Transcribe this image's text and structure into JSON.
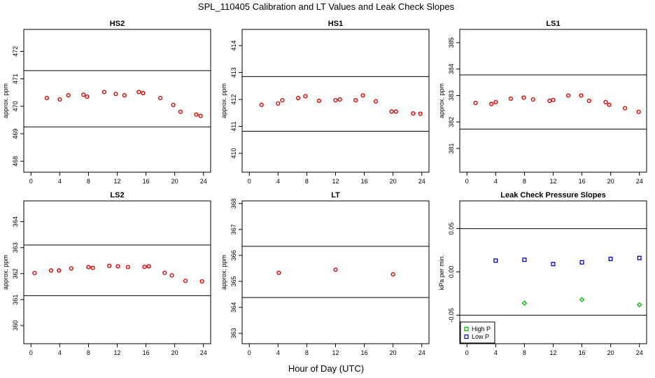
{
  "figure": {
    "title": "SPL_110405  Calibration and LT Values and Leak Check Slopes",
    "xlabel": "Hour of Day (UTC)"
  },
  "chart_data": [
    {
      "type": "scatter",
      "title": "HS2",
      "ylabel": "approx. ppm",
      "xlim": [
        -1,
        25
      ],
      "ylim": [
        467.6,
        472.8
      ],
      "xticks": [
        0,
        4,
        8,
        12,
        16,
        20,
        24
      ],
      "yticks": [
        468,
        469,
        470,
        471,
        472
      ],
      "hlines": [
        471.3,
        469.25
      ],
      "series": [
        {
          "color": "#dd0000",
          "marker": "circle",
          "x": [
            2.2,
            4.0,
            5.2,
            7.3,
            7.8,
            10.2,
            11.8,
            13.0,
            15.0,
            15.6,
            18.0,
            19.8,
            20.8,
            23.0,
            23.6
          ],
          "y": [
            470.3,
            470.25,
            470.4,
            470.42,
            470.35,
            470.52,
            470.45,
            470.4,
            470.52,
            470.48,
            470.3,
            470.05,
            469.8,
            469.7,
            469.65
          ]
        }
      ]
    },
    {
      "type": "scatter",
      "title": "HS1",
      "ylabel": "approx. ppm",
      "xlim": [
        -1,
        25
      ],
      "ylim": [
        409.3,
        414.6
      ],
      "xticks": [
        0,
        4,
        8,
        12,
        16,
        20,
        24
      ],
      "yticks": [
        410,
        411,
        412,
        413,
        414
      ],
      "hlines": [
        412.85,
        410.82
      ],
      "series": [
        {
          "color": "#dd0000",
          "marker": "circle",
          "x": [
            1.7,
            4.0,
            4.6,
            6.8,
            7.8,
            9.7,
            12.0,
            12.6,
            14.8,
            15.8,
            17.6,
            19.8,
            20.4,
            22.8,
            23.8
          ],
          "y": [
            411.8,
            411.85,
            411.97,
            412.05,
            412.12,
            411.95,
            411.97,
            412.0,
            411.97,
            412.15,
            411.93,
            411.55,
            411.55,
            411.48,
            411.47
          ]
        }
      ]
    },
    {
      "type": "scatter",
      "title": "LS1",
      "ylabel": "approx. ppm",
      "xlim": [
        -1,
        25
      ],
      "ylim": [
        380.1,
        385.5
      ],
      "xticks": [
        0,
        4,
        8,
        12,
        16,
        20,
        24
      ],
      "yticks": [
        381,
        382,
        383,
        384,
        385
      ],
      "hlines": [
        383.78,
        381.73
      ],
      "series": [
        {
          "color": "#dd0000",
          "marker": "circle",
          "x": [
            1.2,
            3.4,
            4.0,
            6.1,
            7.9,
            9.2,
            11.5,
            12.0,
            14.1,
            15.9,
            17.0,
            19.3,
            19.8,
            22.0,
            23.9
          ],
          "y": [
            382.72,
            382.68,
            382.75,
            382.88,
            382.92,
            382.85,
            382.8,
            382.83,
            383.0,
            383.0,
            382.8,
            382.75,
            382.65,
            382.52,
            382.38
          ]
        }
      ]
    },
    {
      "type": "scatter",
      "title": "LS2",
      "ylabel": "approx. ppm",
      "xlim": [
        -1,
        25
      ],
      "ylim": [
        359.3,
        364.8
      ],
      "xticks": [
        0,
        4,
        8,
        12,
        16,
        20,
        24
      ],
      "yticks": [
        360,
        361,
        362,
        363,
        364
      ],
      "hlines": [
        363.1,
        361.15
      ],
      "series": [
        {
          "color": "#dd0000",
          "marker": "circle",
          "x": [
            0.5,
            2.8,
            3.9,
            5.6,
            8.0,
            8.6,
            10.9,
            12.1,
            13.5,
            15.8,
            16.4,
            18.6,
            19.6,
            21.5,
            23.8
          ],
          "y": [
            362.02,
            362.12,
            362.12,
            362.2,
            362.25,
            362.22,
            362.3,
            362.28,
            362.25,
            362.26,
            362.28,
            362.03,
            361.93,
            361.72,
            361.7
          ]
        }
      ]
    },
    {
      "type": "scatter",
      "title": "LT",
      "ylabel": "approx. ppm",
      "xlim": [
        -1,
        25
      ],
      "ylim": [
        362.6,
        368.1
      ],
      "xticks": [
        0,
        4,
        8,
        12,
        16,
        20,
        24
      ],
      "yticks": [
        363,
        364,
        365,
        366,
        367,
        368
      ],
      "hlines": [
        366.35,
        364.38
      ],
      "series": [
        {
          "color": "#dd0000",
          "marker": "circle",
          "x": [
            4.1,
            12.0,
            20.0
          ],
          "y": [
            365.33,
            365.45,
            365.27
          ]
        }
      ]
    },
    {
      "type": "scatter",
      "title": "Leak Check Pressure Slopes",
      "ylabel": "kPa per min.",
      "xlim": [
        -1,
        25
      ],
      "ylim": [
        -0.083,
        0.082
      ],
      "xticks": [
        0,
        4,
        8,
        12,
        16,
        20,
        24
      ],
      "yticks": [
        -0.05,
        0.0,
        0.05
      ],
      "ytick_labels": [
        "-0.05",
        "0.00",
        "0.05"
      ],
      "hlines": [
        0.05,
        -0.05
      ],
      "legend": {
        "position": "bottom-left",
        "entries": [
          "High P",
          "Low P"
        ]
      },
      "series": [
        {
          "name": "High P",
          "color": "#00bb00",
          "marker": "diamond",
          "x": [
            8.0,
            16.0,
            24.0
          ],
          "y": [
            -0.036,
            -0.032,
            -0.038
          ]
        },
        {
          "name": "Low P",
          "color": "#0000cc",
          "marker": "square",
          "x": [
            4.0,
            8.0,
            12.0,
            16.0,
            20.0,
            24.0
          ],
          "y": [
            0.013,
            0.014,
            0.009,
            0.011,
            0.015,
            0.016
          ]
        }
      ]
    }
  ]
}
